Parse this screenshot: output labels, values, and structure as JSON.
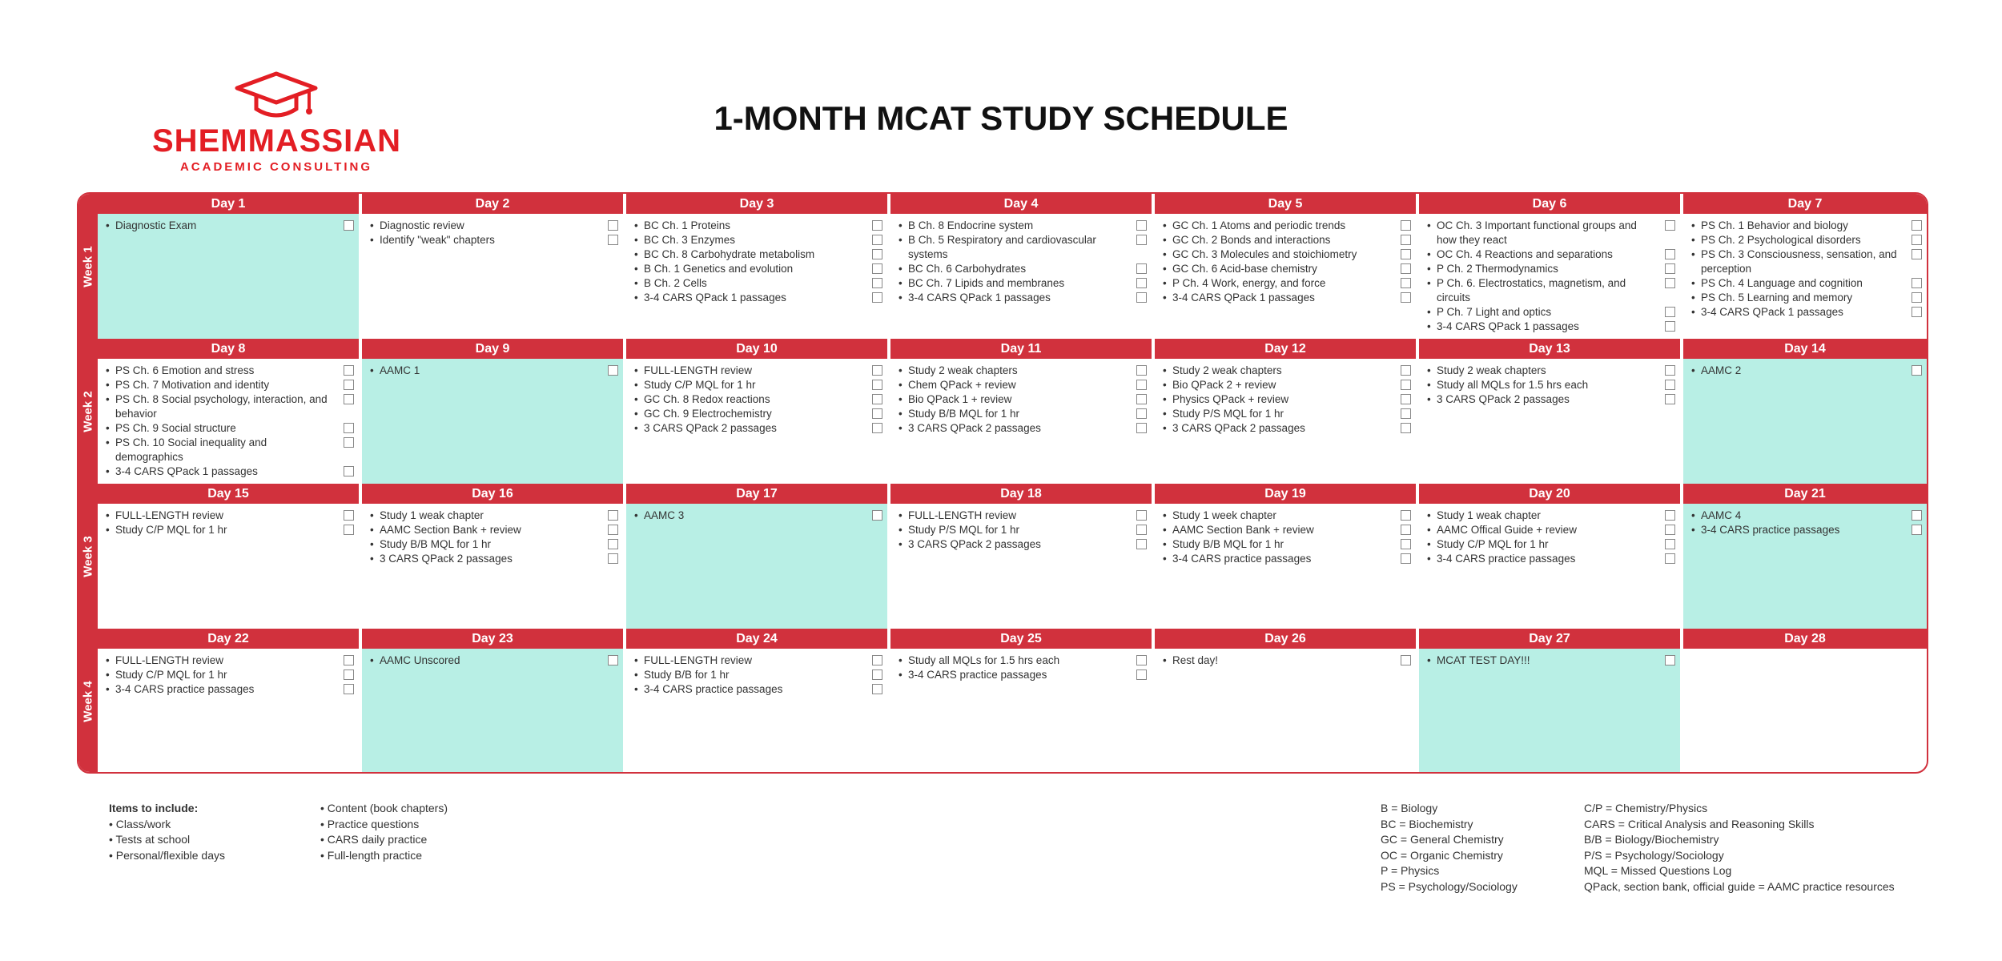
{
  "brand": {
    "name": "SHEMMASSIAN",
    "sub": "ACADEMIC CONSULTING",
    "color": "#e31e24",
    "icon": "graduation-cap-icon"
  },
  "title": "1-MONTH MCAT STUDY SCHEDULE",
  "colors": {
    "header": "#d1313d",
    "highlight": "#b8efe5"
  },
  "weeks": [
    "Week 1",
    "Week 2",
    "Week 3",
    "Week 4"
  ],
  "days": [
    {
      "label": "Day 1",
      "highlight": true,
      "items": [
        "Diagnostic Exam"
      ]
    },
    {
      "label": "Day 2",
      "highlight": false,
      "items": [
        "Diagnostic review",
        "Identify \"weak\" chapters"
      ]
    },
    {
      "label": "Day 3",
      "highlight": false,
      "items": [
        "BC Ch. 1 Proteins",
        "BC Ch. 3 Enzymes",
        "BC Ch. 8 Carbohydrate metabolism",
        "B Ch. 1 Genetics and evolution",
        "B Ch. 2 Cells",
        "3-4 CARS QPack 1 passages"
      ]
    },
    {
      "label": "Day 4",
      "highlight": false,
      "items": [
        "B Ch. 8 Endocrine system",
        "B Ch. 5 Respiratory and cardiovascular systems",
        "BC Ch. 6 Carbohydrates",
        "BC Ch. 7 Lipids and membranes",
        "3-4 CARS QPack 1 passages"
      ]
    },
    {
      "label": "Day 5",
      "highlight": false,
      "items": [
        "GC Ch. 1 Atoms and periodic trends",
        "GC Ch. 2 Bonds and interactions",
        "GC Ch. 3 Molecules and stoichiometry",
        "GC Ch. 6 Acid-base chemistry",
        "P Ch. 4 Work, energy, and force",
        "3-4 CARS QPack 1 passages"
      ]
    },
    {
      "label": "Day 6",
      "highlight": false,
      "items": [
        "OC Ch. 3 Important functional groups and how they react",
        "OC Ch. 4 Reactions and separations",
        "P Ch. 2 Thermodynamics",
        "P Ch. 6. Electrostatics, magnetism, and circuits",
        "P Ch. 7 Light and optics",
        "3-4 CARS QPack 1 passages"
      ]
    },
    {
      "label": "Day 7",
      "highlight": false,
      "items": [
        "PS Ch. 1 Behavior and biology",
        "PS Ch. 2 Psychological disorders",
        "PS Ch. 3 Consciousness, sensation, and perception",
        "PS Ch. 4 Language and cognition",
        "PS Ch. 5 Learning and memory",
        "3-4 CARS QPack 1 passages"
      ]
    },
    {
      "label": "Day 8",
      "highlight": false,
      "items": [
        "PS Ch. 6 Emotion and stress",
        "PS Ch. 7 Motivation and identity",
        "PS Ch. 8 Social psychology, interaction, and behavior",
        "PS Ch. 9 Social structure",
        "PS Ch. 10 Social inequality and demographics",
        "3-4 CARS QPack 1 passages"
      ]
    },
    {
      "label": "Day 9",
      "highlight": true,
      "items": [
        "AAMC 1"
      ]
    },
    {
      "label": "Day 10",
      "highlight": false,
      "items": [
        "FULL-LENGTH review",
        "Study C/P MQL for 1 hr",
        "GC Ch. 8 Redox reactions",
        "GC Ch. 9 Electrochemistry",
        "3 CARS QPack 2 passages"
      ]
    },
    {
      "label": "Day 11",
      "highlight": false,
      "items": [
        "Study 2 weak chapters",
        "Chem QPack + review",
        "Bio QPack 1 + review",
        "Study B/B MQL for 1 hr",
        "3 CARS QPack 2 passages"
      ]
    },
    {
      "label": "Day 12",
      "highlight": false,
      "items": [
        "Study 2 weak chapters",
        "Bio QPack 2 + review",
        "Physics QPack + review",
        "Study P/S MQL for 1 hr",
        "3 CARS QPack 2 passages"
      ]
    },
    {
      "label": "Day 13",
      "highlight": false,
      "items": [
        "Study 2 weak chapters",
        "Study all MQLs for 1.5 hrs each",
        "3 CARS QPack 2 passages"
      ]
    },
    {
      "label": "Day 14",
      "highlight": true,
      "items": [
        "AAMC 2"
      ]
    },
    {
      "label": "Day 15",
      "highlight": false,
      "items": [
        "FULL-LENGTH review",
        "Study C/P MQL for 1 hr"
      ]
    },
    {
      "label": "Day 16",
      "highlight": false,
      "items": [
        "Study 1 weak chapter",
        "AAMC Section Bank + review",
        "Study B/B MQL for 1 hr",
        "3 CARS QPack 2 passages"
      ]
    },
    {
      "label": "Day 17",
      "highlight": true,
      "items": [
        "AAMC 3"
      ]
    },
    {
      "label": "Day 18",
      "highlight": false,
      "items": [
        "FULL-LENGTH review",
        "Study P/S MQL for 1 hr",
        "3 CARS QPack 2 passages"
      ]
    },
    {
      "label": "Day 19",
      "highlight": false,
      "items": [
        "Study 1 week chapter",
        "AAMC Section Bank + review",
        "Study B/B MQL for 1 hr",
        "3-4 CARS practice passages"
      ]
    },
    {
      "label": "Day 20",
      "highlight": false,
      "items": [
        "Study 1 weak chapter",
        "AAMC Offical Guide + review",
        "Study C/P MQL for 1 hr",
        "3-4 CARS practice passages"
      ]
    },
    {
      "label": "Day 21",
      "highlight": true,
      "items": [
        "AAMC 4",
        "3-4 CARS practice passages"
      ]
    },
    {
      "label": "Day 22",
      "highlight": false,
      "items": [
        "FULL-LENGTH review",
        "Study C/P MQL for 1 hr",
        "3-4 CARS practice passages"
      ]
    },
    {
      "label": "Day 23",
      "highlight": true,
      "items": [
        "AAMC Unscored"
      ]
    },
    {
      "label": "Day 24",
      "highlight": false,
      "items": [
        "FULL-LENGTH review",
        "Study B/B for 1 hr",
        "3-4 CARS practice passages"
      ]
    },
    {
      "label": "Day 25",
      "highlight": false,
      "items": [
        "Study all MQLs for 1.5 hrs each",
        "3-4 CARS practice passages"
      ]
    },
    {
      "label": "Day 26",
      "highlight": false,
      "items": [
        "Rest day!"
      ]
    },
    {
      "label": "Day 27",
      "highlight": true,
      "items": [
        "MCAT TEST DAY!!!"
      ]
    },
    {
      "label": "Day 28",
      "highlight": false,
      "items": []
    }
  ],
  "notes": {
    "heading": "Items to include:",
    "col1": [
      "Class/work",
      "Tests at school",
      "Personal/flexible days"
    ],
    "col2": [
      "Content (book chapters)",
      "Practice questions",
      "CARS daily practice",
      "Full-length practice"
    ],
    "bullet": "•"
  },
  "legend": {
    "left": [
      "B = Biology",
      "BC = Biochemistry",
      "GC = General Chemistry",
      "OC = Organic Chemistry",
      "P = Physics",
      "PS = Psychology/Sociology"
    ],
    "right": [
      "C/P = Chemistry/Physics",
      "CARS = Critical Analysis and Reasoning Skills",
      "B/B = Biology/Biochemistry",
      "P/S = Psychology/Sociology",
      "MQL = Missed Questions Log",
      "QPack, section bank, official guide = AAMC practice resources"
    ]
  }
}
